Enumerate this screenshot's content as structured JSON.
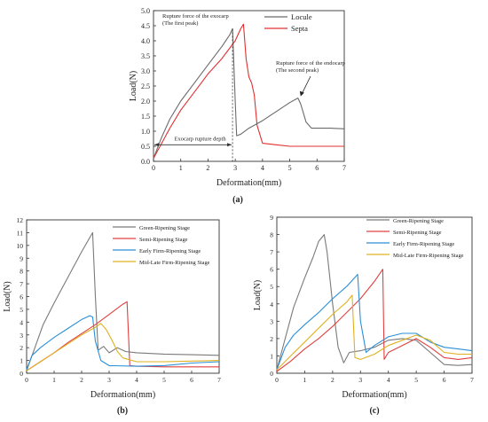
{
  "chart_data": [
    {
      "type": "line",
      "panel_label": "(a)",
      "xlabel": "Deformation(mm)",
      "ylabel": "Load(N)",
      "xlim": [
        0,
        7
      ],
      "ylim": [
        0,
        5.0
      ],
      "xticks": [
        "0",
        "1",
        "2",
        "3",
        "4",
        "5",
        "6",
        "7"
      ],
      "yticks": [
        "0.0",
        "0.5",
        "1.0",
        "1.5",
        "2.0",
        "2.5",
        "3.0",
        "3.5",
        "4.0",
        "4.5",
        "5.0"
      ],
      "legend_position": "top-right",
      "series": [
        {
          "name": "Locule",
          "color": "#6b6b6b",
          "x": [
            0,
            0.3,
            0.6,
            1.0,
            1.5,
            2.0,
            2.5,
            2.8,
            2.9,
            3.0,
            3.05,
            3.2,
            3.5,
            4.0,
            4.5,
            5.0,
            5.3,
            5.4,
            5.6,
            5.8,
            6.0,
            6.5,
            7.0
          ],
          "y": [
            0.1,
            0.8,
            1.4,
            2.0,
            2.6,
            3.2,
            3.8,
            4.2,
            4.4,
            2.0,
            0.85,
            0.9,
            1.1,
            1.35,
            1.65,
            1.95,
            2.1,
            1.9,
            1.3,
            1.1,
            1.1,
            1.1,
            1.08
          ]
        },
        {
          "name": "Septa",
          "color": "#e03030",
          "x": [
            0,
            0.3,
            0.6,
            1.0,
            1.5,
            2.0,
            2.5,
            3.0,
            3.2,
            3.3,
            3.4,
            3.5,
            3.6,
            3.7,
            3.8,
            4.0,
            4.5,
            5.0,
            6.0,
            7.0
          ],
          "y": [
            0.1,
            0.6,
            1.1,
            1.7,
            2.3,
            2.9,
            3.4,
            4.0,
            4.4,
            4.55,
            3.4,
            2.8,
            2.6,
            2.2,
            1.2,
            0.6,
            0.55,
            0.5,
            0.5,
            0.5
          ]
        }
      ],
      "annotations": [
        {
          "text": "Rupture force of the exocarp",
          "text2": "(The first peak)"
        },
        {
          "text": "Rupture force of the endocarp",
          "text2": "(The second peak)"
        },
        {
          "text": "Exocarp rupture depth"
        }
      ]
    },
    {
      "type": "line",
      "panel_label": "(b)",
      "xlabel": "Deformation(mm)",
      "ylabel": "Load(N)",
      "xlim": [
        0,
        7
      ],
      "ylim": [
        0,
        12
      ],
      "xticks": [
        "0",
        "1",
        "2",
        "3",
        "4",
        "5",
        "6",
        "7"
      ],
      "yticks": [
        "0",
        "1",
        "2",
        "3",
        "4",
        "5",
        "6",
        "7",
        "8",
        "9",
        "10",
        "11",
        "12"
      ],
      "legend_position": "top-right",
      "series": [
        {
          "name": "Green-Ripening Stage",
          "color": "#7a7a7a",
          "x": [
            0,
            0.3,
            0.6,
            1.0,
            1.5,
            2.0,
            2.4,
            2.5,
            2.6,
            2.8,
            3.0,
            3.3,
            3.6,
            4.0,
            5.0,
            6.0,
            7.0
          ],
          "y": [
            0.2,
            2.0,
            3.8,
            5.5,
            7.5,
            9.5,
            11.0,
            6.0,
            1.8,
            2.1,
            1.6,
            2.0,
            1.7,
            1.6,
            1.5,
            1.45,
            1.4
          ]
        },
        {
          "name": "Semi-Ripening Stage",
          "color": "#e04040",
          "x": [
            0,
            0.5,
            1.0,
            1.5,
            2.0,
            2.5,
            3.0,
            3.5,
            3.65,
            3.75,
            4.0,
            5.0,
            6.0,
            7.0
          ],
          "y": [
            0.2,
            0.9,
            1.6,
            2.4,
            3.1,
            3.8,
            4.6,
            5.4,
            5.6,
            0.6,
            0.55,
            0.5,
            0.5,
            0.5
          ]
        },
        {
          "name": "Early Firm-Ripening Stage",
          "color": "#2a8fd8",
          "x": [
            0,
            0.2,
            0.5,
            1.0,
            1.5,
            2.0,
            2.3,
            2.4,
            2.5,
            2.7,
            3.0,
            4.0,
            5.0,
            6.0,
            7.0
          ],
          "y": [
            0.3,
            1.4,
            2.0,
            2.8,
            3.5,
            4.2,
            4.5,
            4.4,
            2.5,
            1.0,
            0.6,
            0.55,
            0.6,
            0.8,
            0.9
          ]
        },
        {
          "name": "Mid-Late Firm-Ripening Stage",
          "color": "#e0b020",
          "x": [
            0,
            0.5,
            1.0,
            1.5,
            2.0,
            2.5,
            2.7,
            2.9,
            3.1,
            3.3,
            3.5,
            4.0,
            5.0,
            6.0,
            7.0
          ],
          "y": [
            0.2,
            0.9,
            1.6,
            2.3,
            3.0,
            3.6,
            3.9,
            3.4,
            2.6,
            1.7,
            1.2,
            0.9,
            0.9,
            0.95,
            1.0
          ]
        }
      ]
    },
    {
      "type": "line",
      "panel_label": "(c)",
      "xlabel": "Deformation(mm)",
      "ylabel": "Load(N)",
      "xlim": [
        0,
        7
      ],
      "ylim": [
        0,
        9
      ],
      "xticks": [
        "0",
        "1",
        "2",
        "3",
        "4",
        "5",
        "6",
        "7"
      ],
      "yticks": [
        "0",
        "1",
        "2",
        "3",
        "4",
        "5",
        "6",
        "7",
        "8",
        "9"
      ],
      "legend_position": "top-right",
      "series": [
        {
          "name": "Green-Ripening Stage",
          "color": "#7a7a7a",
          "x": [
            0,
            0.3,
            0.6,
            1.0,
            1.3,
            1.5,
            1.7,
            1.8,
            2.0,
            2.2,
            2.4,
            2.6,
            3.0,
            3.5,
            4.0,
            4.5,
            5.0,
            5.5,
            6.0,
            6.5,
            7.0
          ],
          "y": [
            0.2,
            2.0,
            3.8,
            5.5,
            6.7,
            7.6,
            8.0,
            7.0,
            4.0,
            1.5,
            0.6,
            1.2,
            1.3,
            1.5,
            1.9,
            2.0,
            1.9,
            1.2,
            0.5,
            0.45,
            0.5
          ]
        },
        {
          "name": "Semi-Ripening Stage",
          "color": "#e04040",
          "x": [
            0,
            0.5,
            1.0,
            1.5,
            2.0,
            2.5,
            3.0,
            3.5,
            3.8,
            3.85,
            4.0,
            4.5,
            5.0,
            5.5,
            6.0,
            6.5,
            7.0
          ],
          "y": [
            0.1,
            0.7,
            1.4,
            2.0,
            2.7,
            3.5,
            4.3,
            5.3,
            6.0,
            0.8,
            1.2,
            1.6,
            2.0,
            1.5,
            0.9,
            0.8,
            0.9
          ]
        },
        {
          "name": "Early Firm-Ripening Stage",
          "color": "#2a8fd8",
          "x": [
            0,
            0.3,
            0.6,
            1.0,
            1.5,
            2.0,
            2.5,
            2.9,
            3.0,
            3.2,
            3.5,
            4.0,
            4.5,
            5.0,
            5.5,
            6.0,
            6.5,
            7.0
          ],
          "y": [
            0.2,
            1.5,
            2.2,
            2.8,
            3.5,
            4.3,
            5.0,
            5.7,
            3.0,
            1.2,
            1.6,
            2.1,
            2.3,
            2.3,
            1.8,
            1.5,
            1.4,
            1.3
          ]
        },
        {
          "name": "Mid-Late Firm-Ripening Stage",
          "color": "#e0b020",
          "x": [
            0,
            0.5,
            1.0,
            1.5,
            2.0,
            2.5,
            2.7,
            2.8,
            3.0,
            3.5,
            4.0,
            4.5,
            5.0,
            5.5,
            6.0,
            6.5,
            7.0
          ],
          "y": [
            0.2,
            1.0,
            1.8,
            2.6,
            3.4,
            4.1,
            4.5,
            0.9,
            0.8,
            1.1,
            1.6,
            1.9,
            2.2,
            1.9,
            1.2,
            1.1,
            1.1
          ]
        }
      ]
    }
  ]
}
